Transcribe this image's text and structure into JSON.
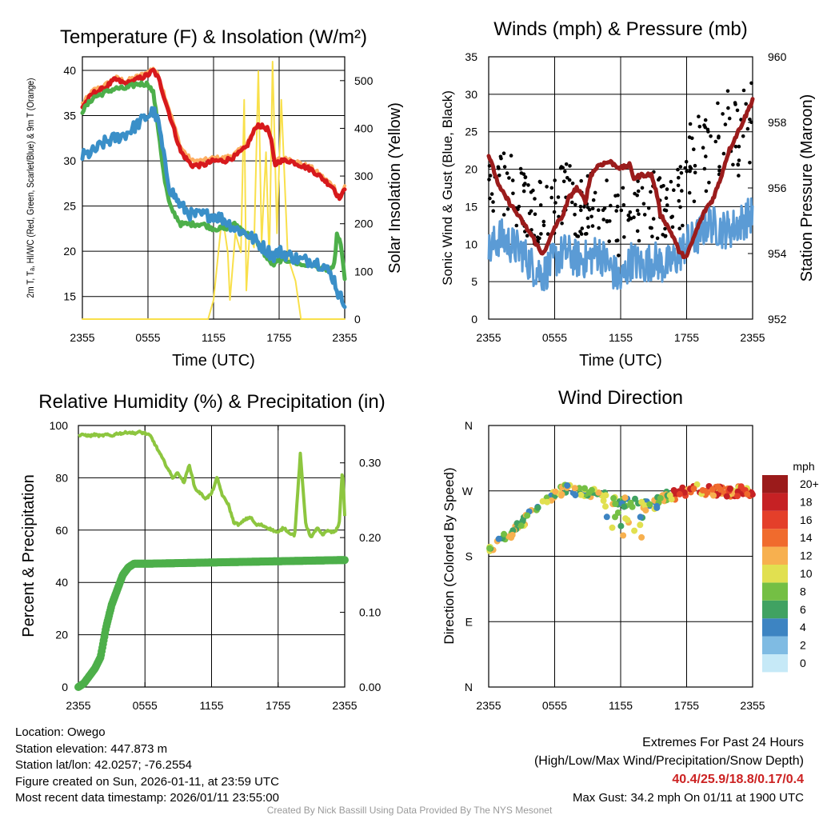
{
  "chart_data": [
    {
      "type": "line",
      "title": "Temperature (F) & Insolation (W/m²)",
      "xlabel": "Time (UTC)",
      "ylabel": "2m T, Tₐ, HI/WC (Red, Green, Scarlet/Blue) & 9m T (Orange)",
      "y2label": "Solar Insolation (Yellow)",
      "x_ticks": [
        "2355",
        "0555",
        "1155",
        "1755",
        "2355"
      ],
      "ylim": [
        12.5,
        41.5
      ],
      "y_ticks": [
        15,
        20,
        25,
        30,
        35,
        40
      ],
      "y2lim": [
        0,
        550
      ],
      "y2_ticks": [
        0,
        100,
        200,
        300,
        400,
        500
      ],
      "series": [
        {
          "name": "2m Temperature",
          "color": "#d7191c",
          "axis": "left",
          "x": [
            0,
            1,
            2,
            3,
            4,
            5,
            6,
            6.5,
            7,
            8,
            9,
            10,
            11,
            12,
            13,
            14,
            15,
            16,
            17,
            17.3,
            17.6,
            18,
            19,
            20,
            21,
            22,
            23,
            23.4,
            23.7,
            24
          ],
          "y": [
            36,
            37.5,
            38,
            39,
            38.5,
            39,
            39.5,
            40,
            39,
            35,
            31,
            29.5,
            29.5,
            30,
            30,
            30.5,
            31.5,
            34,
            33.5,
            32,
            29.5,
            30,
            30,
            29.5,
            29,
            28,
            27,
            26,
            26,
            27
          ]
        },
        {
          "name": "9m Temperature",
          "color": "#fdae61",
          "axis": "left",
          "x": [
            0,
            1,
            2,
            3,
            4,
            5,
            6,
            6.5,
            7,
            8,
            9,
            10,
            11,
            12,
            13,
            14,
            15,
            16,
            17,
            17.3,
            17.6,
            18,
            19,
            20,
            21,
            22,
            23,
            23.4,
            23.7,
            24
          ],
          "y": [
            36.3,
            37.8,
            38.3,
            39.2,
            38.8,
            39.3,
            39.8,
            40.3,
            39.3,
            35.5,
            31.5,
            30,
            30,
            30.3,
            30.3,
            30.8,
            31.8,
            34,
            33.5,
            32.5,
            29.8,
            30.2,
            30.2,
            29.7,
            29.2,
            28.2,
            27.2,
            26.2,
            26.2,
            27.2
          ]
        },
        {
          "name": "2m Dewpoint",
          "color": "#4daf4a",
          "axis": "left",
          "x": [
            0,
            1,
            2,
            3,
            4,
            5,
            6,
            6.5,
            7,
            7.5,
            8,
            9,
            10,
            11,
            12,
            13,
            14,
            15,
            16,
            17,
            17.5,
            18,
            19,
            20,
            21,
            22,
            23,
            23.3,
            23.6,
            24
          ],
          "y": [
            35.5,
            37,
            37.5,
            38,
            38,
            38.5,
            38.5,
            37.5,
            33,
            28,
            25,
            23,
            23,
            23,
            22.5,
            22.5,
            23,
            22,
            21,
            19,
            18.5,
            19,
            19,
            18.5,
            18.5,
            18,
            18,
            22,
            21,
            17
          ]
        },
        {
          "name": "Heat Index / Wind Chill",
          "color": "#3a8fc8",
          "axis": "left",
          "x": [
            0,
            1,
            2,
            3,
            4,
            5,
            6,
            6.5,
            7,
            7.5,
            8,
            9,
            10,
            11,
            12,
            13,
            14,
            15,
            16,
            17,
            17.5,
            18,
            19,
            20,
            21,
            22,
            23,
            23.5,
            24
          ],
          "y": [
            30.5,
            31,
            32,
            32.5,
            33,
            34,
            35,
            35.5,
            34,
            30,
            27,
            25,
            24,
            24,
            24,
            23.5,
            22.5,
            22,
            21,
            20,
            19.5,
            20,
            19.5,
            19,
            19,
            18.5,
            17,
            15,
            14.5
          ]
        },
        {
          "name": "Solar Insolation",
          "color": "#f9e04b",
          "axis": "right",
          "x": [
            0,
            11.5,
            12,
            12.8,
            13.3,
            13.5,
            14,
            14.5,
            14.8,
            15,
            15.3,
            15.7,
            16.1,
            16.4,
            16.8,
            17.1,
            17.4,
            17.8,
            18.2,
            18.8,
            19.5,
            20,
            24
          ],
          "y": [
            0,
            0,
            40,
            220,
            140,
            40,
            180,
            140,
            460,
            60,
            180,
            150,
            520,
            160,
            350,
            120,
            540,
            180,
            460,
            130,
            80,
            0,
            0
          ]
        }
      ]
    },
    {
      "type": "line",
      "title": "Winds (mph) & Pressure (mb)",
      "xlabel": "Time (UTC)",
      "ylabel": "Sonic Wind & Gust (Blue, Black)",
      "y2label": "Station Pressure (Maroon)",
      "x_ticks": [
        "2355",
        "0555",
        "1155",
        "1755",
        "2355"
      ],
      "ylim": [
        0,
        35
      ],
      "y_ticks": [
        0,
        5,
        10,
        15,
        20,
        25,
        30,
        35
      ],
      "y2lim": [
        952,
        960
      ],
      "y2_ticks": [
        952,
        954,
        956,
        958,
        960
      ],
      "series": [
        {
          "name": "Sonic Wind",
          "color": "#5b9bd5",
          "axis": "left",
          "x": [
            0,
            1,
            2,
            3,
            4,
            5,
            6,
            7,
            8,
            9,
            10,
            11,
            12,
            13,
            14,
            15,
            16,
            17,
            18,
            19,
            20,
            21,
            22,
            23,
            24
          ],
          "y": [
            9,
            11,
            10,
            9,
            7,
            6,
            8,
            9,
            8,
            8,
            9,
            7,
            5,
            8,
            7,
            8,
            7,
            8,
            10,
            11,
            13,
            12,
            12,
            13,
            14
          ]
        },
        {
          "name": "Station Pressure",
          "color": "#9b1c1c",
          "axis": "right",
          "x": [
            0,
            1,
            2,
            3,
            4,
            4.8,
            5.3,
            6,
            6.8,
            7.3,
            8,
            8.8,
            9.3,
            10,
            11,
            12,
            12.8,
            13.2,
            14,
            14.8,
            15.3,
            15.6,
            16,
            16.8,
            17.4,
            18,
            19,
            19.8,
            20.3,
            21,
            21.8,
            22.8,
            23.5,
            24
          ],
          "y": [
            957,
            956,
            955.5,
            955,
            954.5,
            954,
            954.2,
            954.8,
            955.2,
            955.7,
            956,
            955.6,
            956.4,
            956.7,
            956.8,
            956.6,
            956.7,
            956.3,
            956.4,
            956.4,
            955.8,
            955.2,
            955,
            954.5,
            954,
            953.9,
            954.8,
            955.4,
            955.6,
            956.2,
            957.1,
            957.8,
            958.3,
            958.7
          ]
        }
      ],
      "gust_points": {
        "name": "Sonic Gust",
        "color": "#000000",
        "count": 260,
        "range": [
          5,
          34.2
        ]
      }
    },
    {
      "type": "line",
      "title": "Relative Humidity (%) & Precipitation (in)",
      "xlabel": "",
      "ylabel": "Percent & Precipitation",
      "x_ticks": [
        "2355",
        "0555",
        "1155",
        "1755",
        "2355"
      ],
      "ylim": [
        0,
        100
      ],
      "y_ticks": [
        0,
        20,
        40,
        60,
        80,
        100
      ],
      "y2lim": [
        0,
        0.35
      ],
      "y2_ticks": [
        "0.00",
        "0.10",
        "0.20",
        "0.30"
      ],
      "series": [
        {
          "name": "Relative Humidity",
          "color": "#8dc63f",
          "axis": "left",
          "x": [
            0,
            0.5,
            1,
            1.5,
            2,
            2.5,
            3,
            3.5,
            4,
            4.5,
            5,
            5.5,
            6,
            6.5,
            7,
            7.5,
            8,
            8.5,
            9,
            9.5,
            10,
            10.5,
            11,
            11.5,
            12,
            12.5,
            13,
            13.5,
            14,
            14.5,
            15,
            15.5,
            16,
            16.5,
            17,
            17.5,
            18,
            18.5,
            19,
            19.5,
            20,
            20.5,
            21,
            21.5,
            22,
            22.5,
            23,
            23.2,
            23.5,
            23.8,
            24
          ],
          "y": [
            96,
            96.5,
            96,
            96.5,
            96,
            96.5,
            96,
            97,
            97,
            97.5,
            97,
            97.5,
            97,
            96,
            92,
            88,
            84,
            80,
            82,
            78,
            85,
            76,
            74,
            72,
            74,
            80,
            73,
            70,
            63,
            62,
            64,
            65,
            62,
            62,
            61,
            60,
            59,
            61,
            59,
            58,
            89,
            62,
            57,
            61,
            58,
            60,
            59,
            60,
            62,
            84,
            65
          ]
        },
        {
          "name": "Precipitation",
          "color": "#4daf4a",
          "axis": "right",
          "x": [
            0,
            0.5,
            1,
            1.5,
            2,
            2.5,
            3,
            3.5,
            4,
            4.5,
            5,
            6,
            24
          ],
          "y": [
            0,
            0.005,
            0.015,
            0.025,
            0.04,
            0.08,
            0.11,
            0.13,
            0.15,
            0.16,
            0.165,
            0.165,
            0.17
          ]
        }
      ]
    },
    {
      "type": "scatter",
      "title": "Wind Direction",
      "xlabel": "",
      "ylabel": "Direction (Colored By Speed)",
      "x_ticks": [
        "2355",
        "0555",
        "1155",
        "1755",
        "2355"
      ],
      "y_ticks": [
        "E",
        "S",
        "W",
        "N"
      ],
      "y_ticks_full": [
        "N",
        "E",
        "S",
        "W",
        "N"
      ],
      "colorbar": {
        "title": "mph",
        "labels": [
          "0",
          "2",
          "4",
          "6",
          "8",
          "10",
          "12",
          "14",
          "16",
          "18",
          "20+"
        ],
        "colors": [
          "#c6e9f7",
          "#7fbbe3",
          "#3d84c2",
          "#40a262",
          "#74bf44",
          "#e1e050",
          "#f7b04f",
          "#f06b2d",
          "#e43f2a",
          "#c62124",
          "#9b1b1b"
        ]
      },
      "trend": {
        "x": [
          0,
          1,
          2,
          3,
          4,
          5,
          6,
          7,
          8,
          9,
          10,
          11,
          12,
          13,
          14,
          15,
          16,
          17,
          18,
          19,
          20,
          21,
          22,
          23,
          24
        ],
        "y": [
          190,
          200,
          210,
          225,
          240,
          255,
          265,
          272,
          270,
          268,
          265,
          258,
          255,
          255,
          250,
          250,
          262,
          265,
          270,
          272,
          270,
          270,
          268,
          270,
          270
        ]
      }
    }
  ],
  "info": {
    "location": "Location: Owego",
    "elevation": "Station elevation: 447.873 m",
    "latlon": "Station lat/lon: 42.0257; -76.2554",
    "created": "Figure created on Sun, 2026-01-11, at 23:59 UTC",
    "recent": "Most recent data timestamp: 2026/01/11 23:55:00"
  },
  "extremes": {
    "title": "Extremes For Past 24 Hours",
    "subtitle": "(High/Low/Max Wind/Precipitation/Snow Depth)",
    "values": "40.4/25.9/18.8/0.17/0.4",
    "gust": "Max Gust: 34.2 mph On 01/11 at 1900 UTC"
  },
  "credit": "Created By Nick Bassill Using Data Provided By The NYS Mesonet"
}
